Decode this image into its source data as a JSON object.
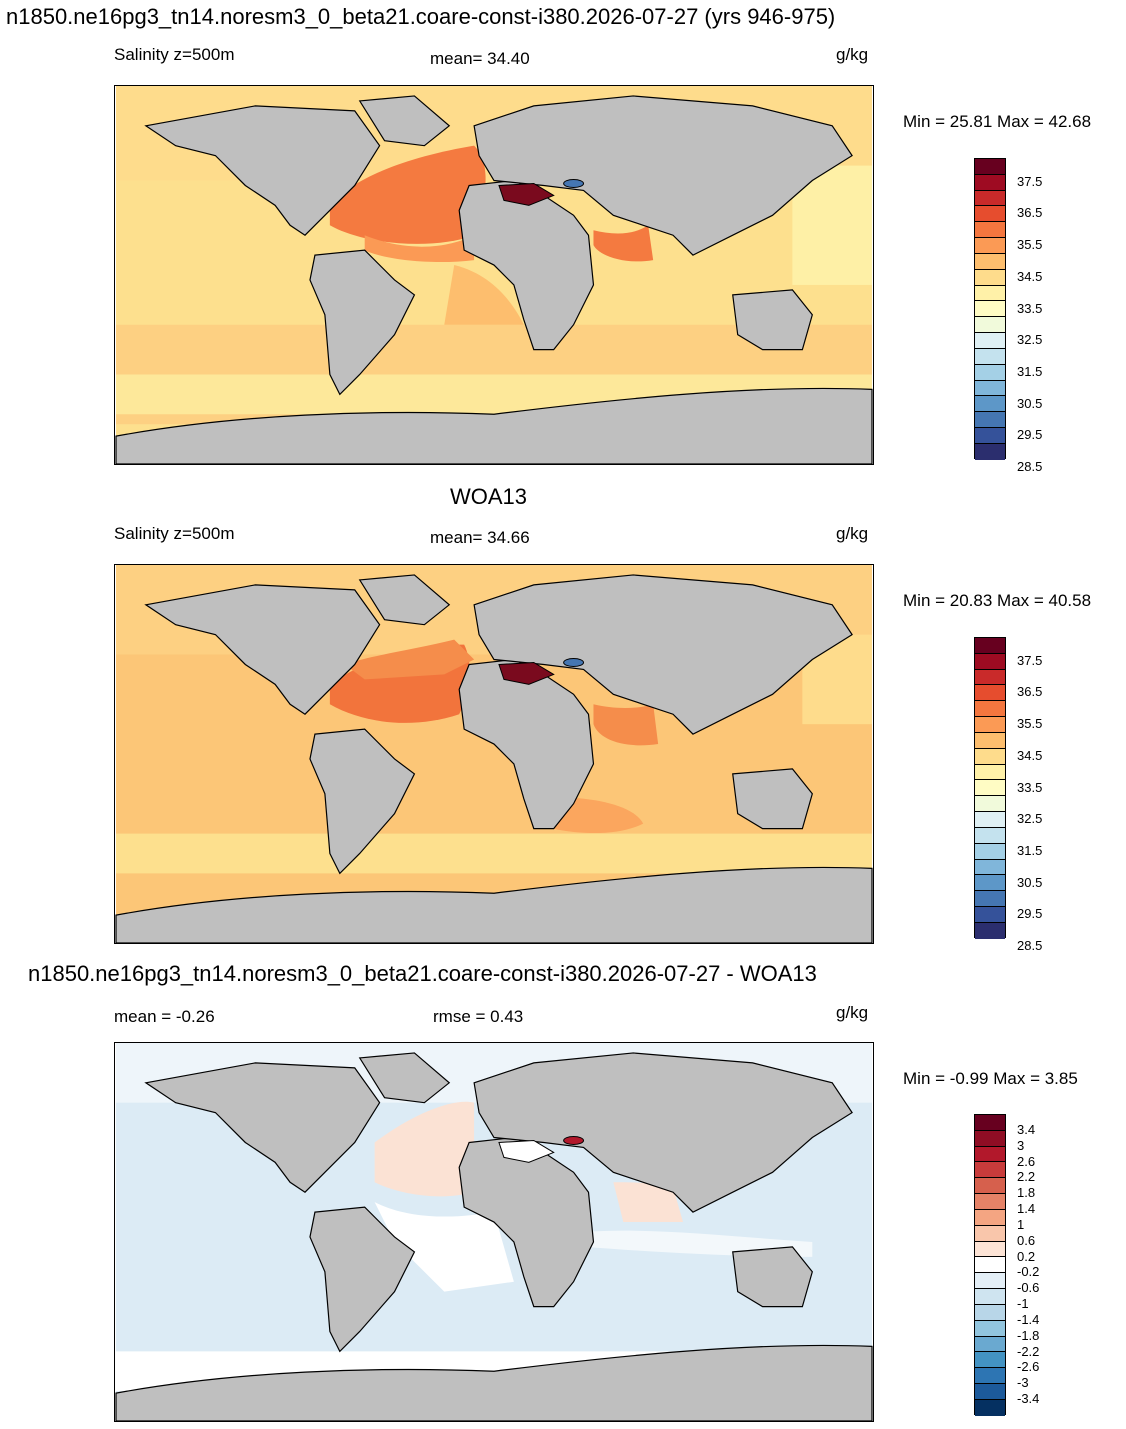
{
  "header": {
    "title_model": "n1850.ne16pg3_tn14.noresm3_0_beta21.coare-const-i380.2026-07-27 (yrs 946-975)"
  },
  "panel1": {
    "left_label": "Salinity z=500m",
    "center_label": "mean=  34.40",
    "units": "g/kg",
    "minmax": "Min =  25.81 Max =  42.68"
  },
  "panel2": {
    "title": "WOA13",
    "left_label": "Salinity z=500m",
    "center_label": "mean=  34.66",
    "units": "g/kg",
    "minmax": "Min =  20.83 Max =  40.58"
  },
  "panel3": {
    "title": "n1850.ne16pg3_tn14.noresm3_0_beta21.coare-const-i380.2026-07-27 - WOA13",
    "left_label": "mean =  -0.26",
    "center_label": "rmse =   0.43",
    "units": "g/kg",
    "minmax": "Min =  -0.99 Max =   3.85"
  },
  "colorbar_abs": {
    "labels": [
      "37.5",
      "36.5",
      "35.5",
      "34.5",
      "33.5",
      "32.5",
      "31.5",
      "30.5",
      "29.5",
      "28.5"
    ],
    "colors": [
      "#67001f",
      "#9e0b22",
      "#c92a2a",
      "#e64d2e",
      "#f4763f",
      "#fb9a55",
      "#fdbe6e",
      "#fedc8c",
      "#fff1a8",
      "#fffcc4",
      "#f1fadb",
      "#dff0f4",
      "#c4e2ee",
      "#a4d0e6",
      "#80b6da",
      "#5d97c8",
      "#4576b2",
      "#35529a",
      "#2b2e6e"
    ]
  },
  "colorbar_diff": {
    "labels": [
      "3.4",
      "3",
      "2.6",
      "2.2",
      "1.8",
      "1.4",
      "1",
      "0.6",
      "0.2",
      "-0.2",
      "-0.6",
      "-1",
      "-1.4",
      "-1.8",
      "-2.2",
      "-2.6",
      "-3",
      "-3.4"
    ],
    "colors": [
      "#67001f",
      "#8f0d24",
      "#b2182b",
      "#c83b3b",
      "#d6604d",
      "#e58267",
      "#f4a582",
      "#f9c6ab",
      "#fde4d6",
      "#ffffff",
      "#e4eff7",
      "#cfe4f0",
      "#b8d6e8",
      "#92c5de",
      "#6aa9d0",
      "#4393c3",
      "#2d75b3",
      "#1c5a9b",
      "#053061"
    ]
  },
  "colors": {
    "land": "#bfbfbf",
    "panel1_ocean": "#fde08e",
    "panel1_atlantic": "#f47a40",
    "panel1_med": "#7a0a1e",
    "panel2_ocean": "#fcc677",
    "panel2_atlantic": "#f2743c",
    "panel3_ocean": "#dcebf5",
    "panel3_warm": "#fbe2d4"
  }
}
